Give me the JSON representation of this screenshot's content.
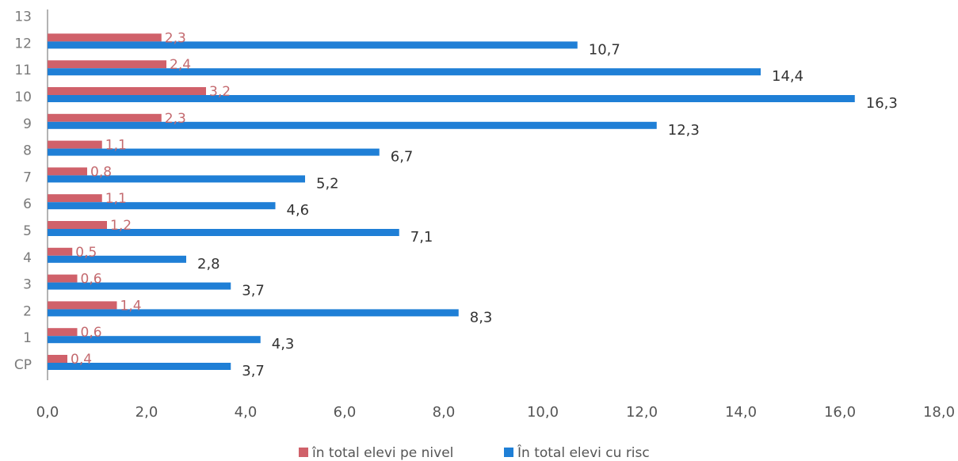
{
  "chart_data": {
    "type": "bar",
    "orientation": "horizontal",
    "categories": [
      "CP",
      "1",
      "2",
      "3",
      "4",
      "5",
      "6",
      "7",
      "8",
      "9",
      "10",
      "11",
      "12",
      "13"
    ],
    "series": [
      {
        "name": "în total elevi pe nivel",
        "color": "#d0616a",
        "values": [
          0.4,
          0.6,
          1.4,
          0.6,
          0.5,
          1.2,
          1.1,
          0.8,
          1.1,
          2.3,
          3.2,
          2.4,
          2.3,
          null
        ],
        "labels": [
          "0,4",
          "0,6",
          "1,4",
          "0,6",
          "0,5",
          "1,2",
          "1,1",
          "0,8",
          "1,1",
          "2,3",
          "3,2",
          "2,4",
          "2,3",
          ""
        ]
      },
      {
        "name": "În total elevi cu risc",
        "color": "#1f7fd6",
        "values": [
          3.7,
          4.3,
          8.3,
          3.7,
          2.8,
          7.1,
          4.6,
          5.2,
          6.7,
          12.3,
          16.3,
          14.4,
          10.7,
          null
        ],
        "labels": [
          "3,7",
          "4,3",
          "8,3",
          "3,7",
          "2,8",
          "7,1",
          "4,6",
          "5,2",
          "6,7",
          "12,3",
          "16,3",
          "14,4",
          "10,7",
          ""
        ]
      }
    ],
    "xlim": [
      0,
      18
    ],
    "xticks": [
      0,
      2,
      4,
      6,
      8,
      10,
      12,
      14,
      16,
      18
    ],
    "xtick_labels": [
      "0,0",
      "2,0",
      "4,0",
      "6,0",
      "8,0",
      "10,0",
      "12,0",
      "14,0",
      "16,0",
      "18,0"
    ],
    "grid": false,
    "legend_position": "bottom"
  }
}
